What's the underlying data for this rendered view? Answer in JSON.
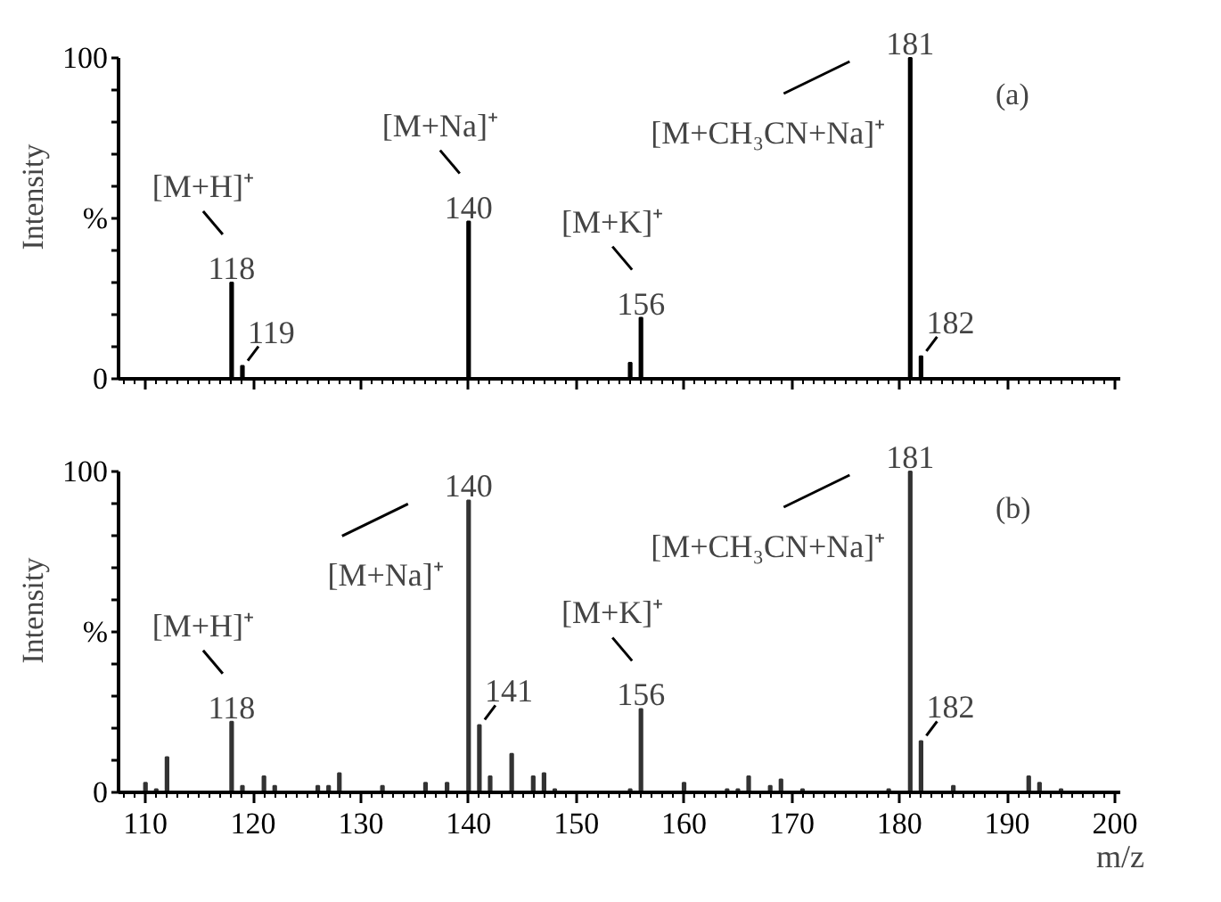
{
  "chart_data": [
    {
      "type": "bar",
      "ylabel": "Intensity",
      "x": [
        118,
        119,
        140,
        155,
        156,
        181,
        182
      ],
      "values": [
        30,
        4,
        49,
        5,
        19,
        100,
        7
      ],
      "color": "#000000",
      "xlim": [
        107.5,
        200.5
      ],
      "ylim": [
        0,
        100
      ],
      "xticks": [
        110,
        120,
        130,
        140,
        150,
        160,
        170,
        180,
        190,
        200
      ],
      "yticks": [
        0,
        {
          "value": 10,
          "label": null
        },
        {
          "value": 20,
          "label": null
        },
        {
          "value": 30,
          "label": null
        },
        {
          "value": 40,
          "label": null
        },
        {
          "value": 50,
          "label": "%"
        },
        {
          "value": 60,
          "label": null
        },
        {
          "value": 70,
          "label": null
        },
        {
          "value": 80,
          "label": null
        },
        {
          "value": 90,
          "label": null
        },
        100
      ],
      "tick_labels": "y",
      "grid": false,
      "annotations": [
        "(a)",
        {
          "text": "118",
          "x": 118,
          "y": 30
        },
        {
          "text": "[M+H]⁺",
          "x": 118,
          "y": 30
        },
        {
          "text": "119",
          "x": 119,
          "y": 4
        },
        {
          "text": "140",
          "x": 140,
          "y": 49
        },
        {
          "text": "[M+Na]⁺",
          "x": 140,
          "y": 49
        },
        {
          "text": "156",
          "x": 156,
          "y": 19
        },
        {
          "text": "[M+K]⁺",
          "x": 156,
          "y": 19
        },
        {
          "text": "181",
          "x": 181,
          "y": 100
        },
        {
          "text": "[M+CH₃CN+Na]⁺",
          "x": 181,
          "y": 100
        },
        {
          "text": "182",
          "x": 182,
          "y": 7
        }
      ]
    },
    {
      "type": "bar",
      "ylabel": "Intensity",
      "xlabel": "m/z",
      "x": [
        110,
        111,
        112,
        118,
        119,
        121,
        122,
        126,
        127,
        128,
        132,
        136,
        138,
        140,
        141,
        142,
        144,
        146,
        147,
        148,
        155,
        156,
        160,
        164,
        165,
        166,
        168,
        169,
        171,
        179,
        181,
        182,
        185,
        192,
        193,
        195
      ],
      "values": [
        3,
        1,
        11,
        22,
        2,
        5,
        2,
        2,
        2,
        6,
        2,
        3,
        3,
        91,
        21,
        5,
        12,
        5,
        6,
        1,
        1,
        26,
        3,
        1,
        1,
        5,
        2,
        4,
        1,
        1,
        100,
        16,
        2,
        5,
        3,
        1
      ],
      "color": "#333333",
      "xlim": [
        107.5,
        200.5
      ],
      "ylim": [
        0,
        100
      ],
      "xticks": [
        110,
        120,
        130,
        140,
        150,
        160,
        170,
        180,
        190,
        200
      ],
      "yticks": [
        0,
        {
          "value": 10,
          "label": null
        },
        {
          "value": 20,
          "label": null
        },
        {
          "value": 30,
          "label": null
        },
        {
          "value": 40,
          "label": null
        },
        {
          "value": 50,
          "label": "%"
        },
        {
          "value": 60,
          "label": null
        },
        {
          "value": 70,
          "label": null
        },
        {
          "value": 80,
          "label": null
        },
        {
          "value": 90,
          "label": null
        },
        100
      ],
      "grid": false,
      "annotations": [
        "(b)",
        {
          "text": "118",
          "x": 118,
          "y": 22
        },
        {
          "text": "[M+H]⁺",
          "x": 118,
          "y": 22
        },
        {
          "text": "140",
          "x": 140,
          "y": 91
        },
        {
          "text": "[M+Na]⁺",
          "x": 140,
          "y": 91
        },
        {
          "text": "141",
          "x": 141,
          "y": 21
        },
        {
          "text": "156",
          "x": 156,
          "y": 26
        },
        {
          "text": "[M+K]⁺",
          "x": 156,
          "y": 26
        },
        {
          "text": "181",
          "x": 181,
          "y": 100
        },
        {
          "text": "[M+CH₃CN+Na]⁺",
          "x": 181,
          "y": 100
        },
        {
          "text": "182",
          "x": 182,
          "y": 16
        }
      ]
    }
  ]
}
